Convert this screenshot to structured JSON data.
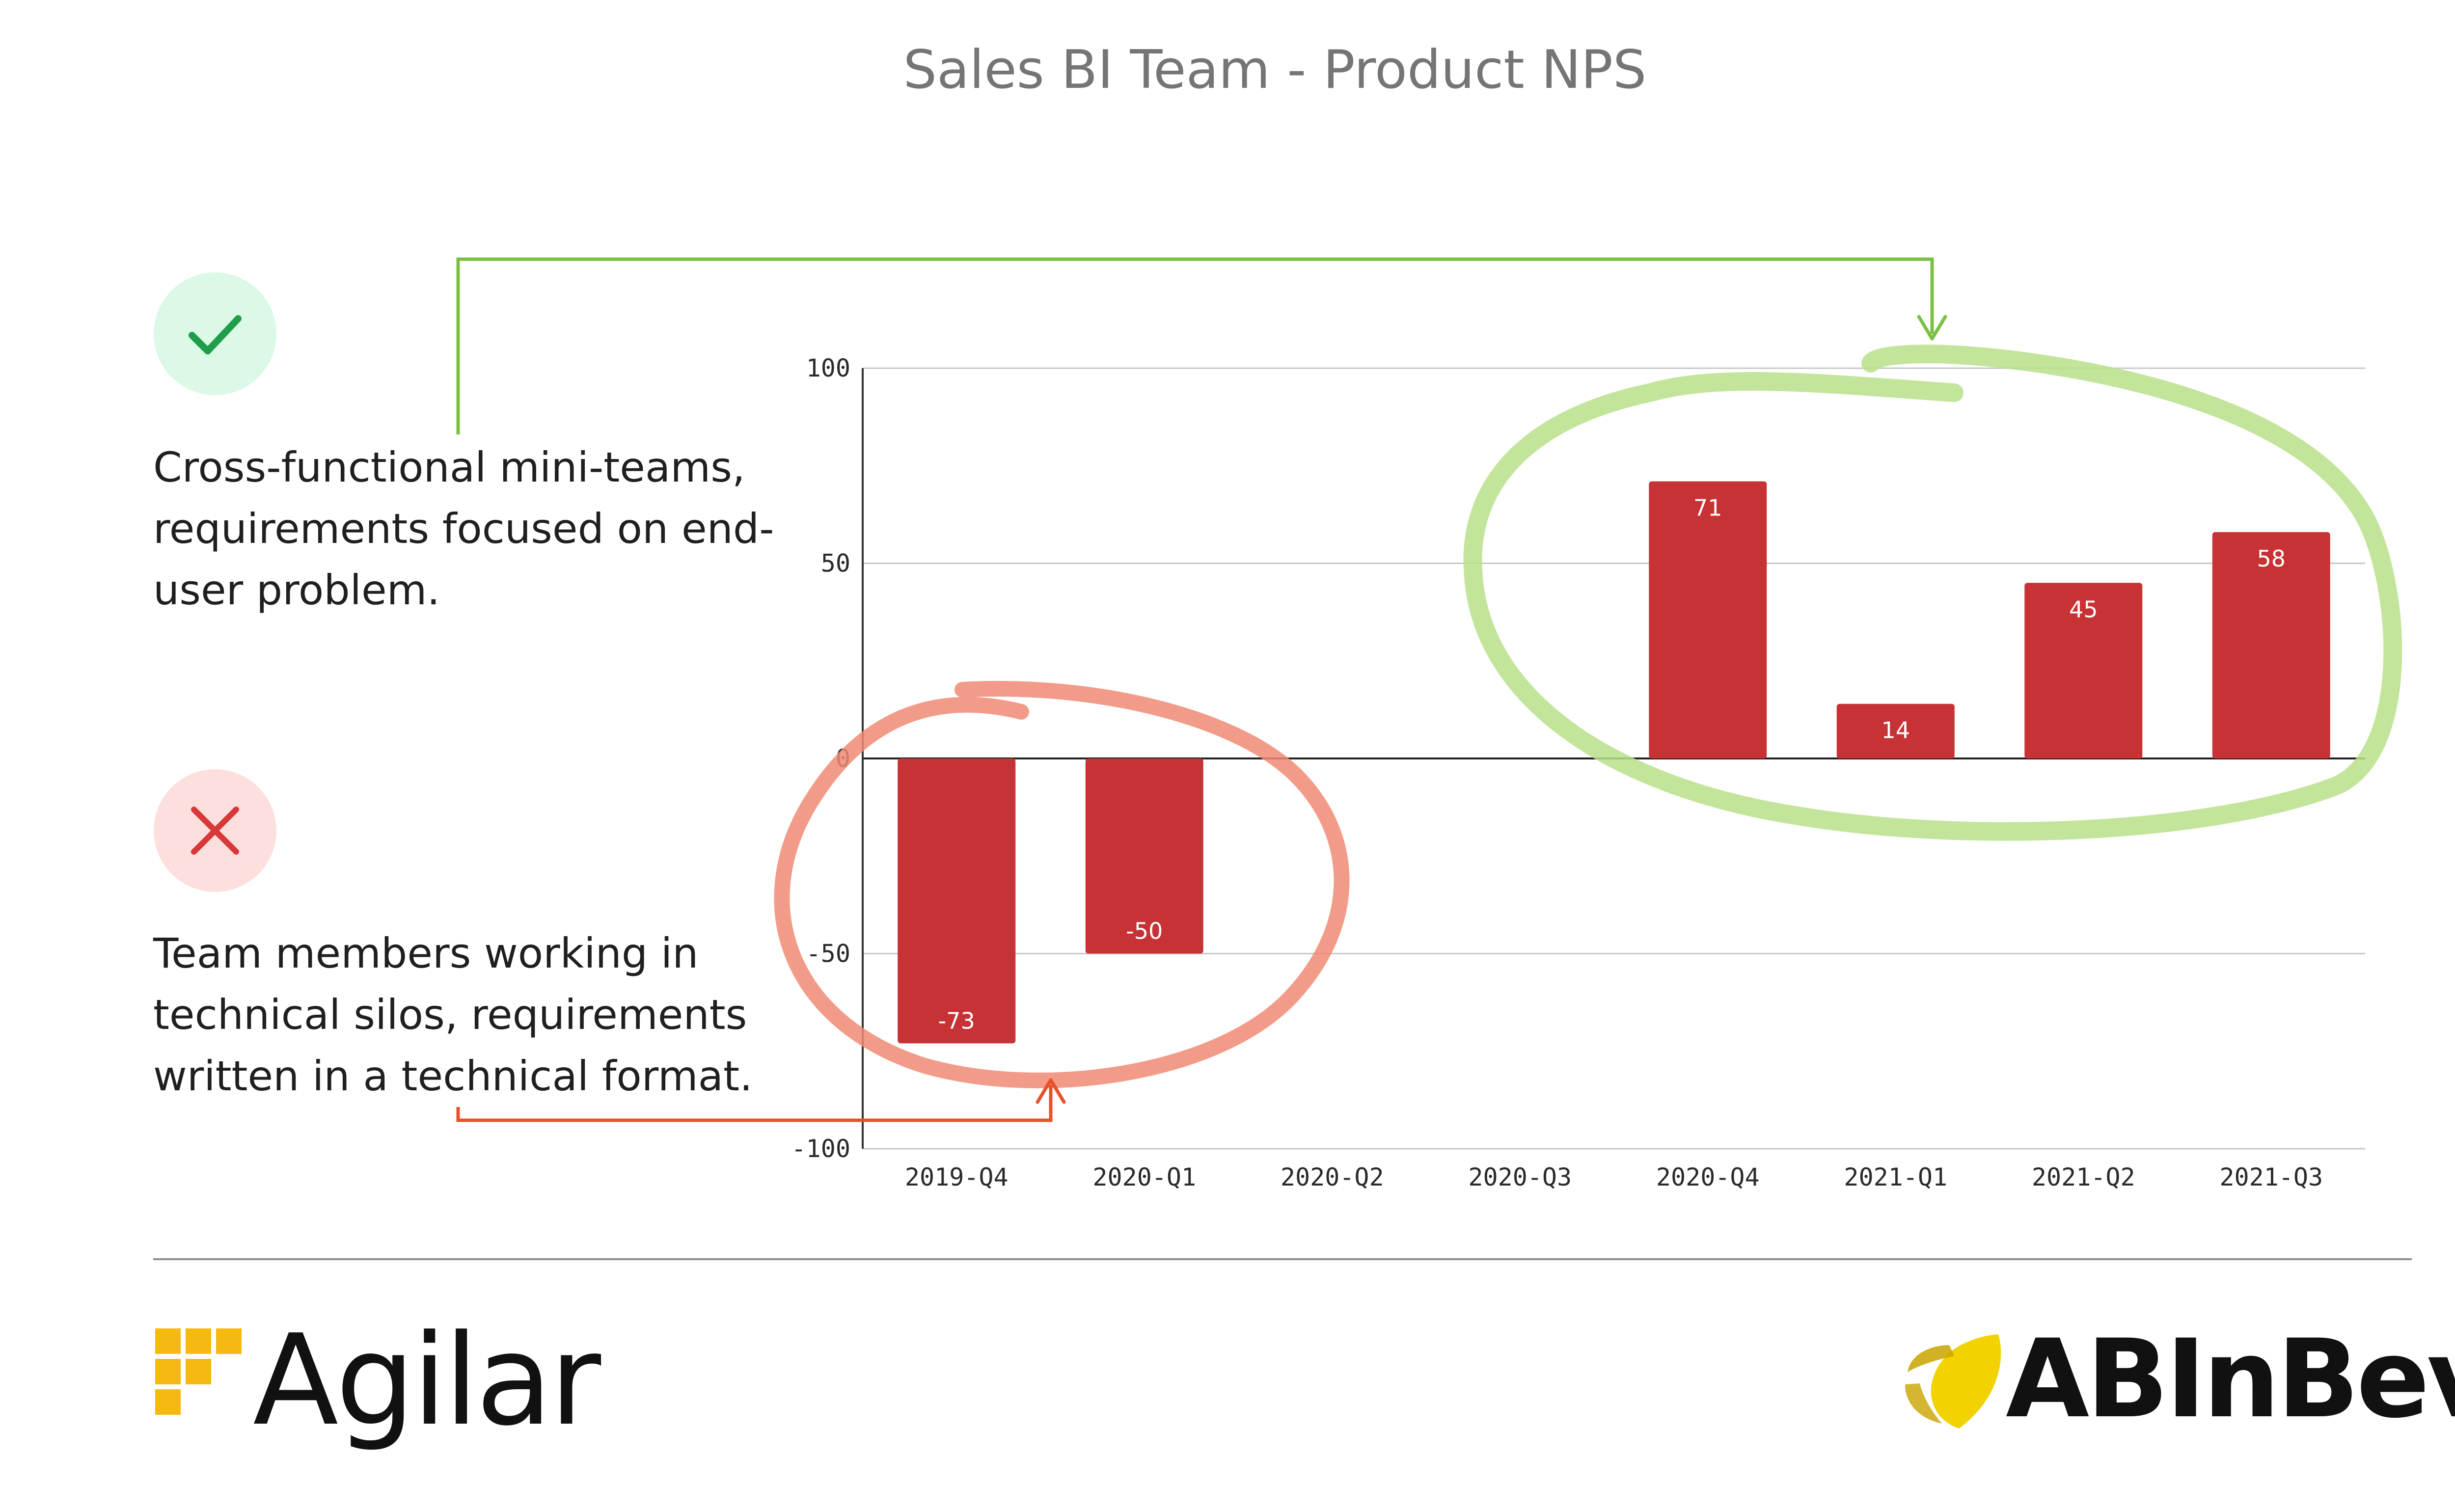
{
  "page": {
    "title": "Sales BI Team - Product NPS"
  },
  "annotations": {
    "positive": {
      "icon": "check-icon",
      "text": "Cross-functional mini-teams,\nrequirements focused on end-\nuser problem.",
      "color": "#7ac143",
      "badge_bg": "#dcf8e6",
      "icon_color": "#1e9e4a"
    },
    "negative": {
      "icon": "x-icon",
      "text": "Team members working in\ntechnical silos, requirements\nwritten in a technical format.",
      "color": "#e8512a",
      "badge_bg": "#fde0de",
      "icon_color": "#d83838"
    }
  },
  "chart_data": {
    "type": "bar",
    "title": "Sales BI Team - Product NPS",
    "xlabel": "",
    "ylabel": "",
    "categories": [
      "2019-Q4",
      "2020-Q1",
      "2020-Q2",
      "2020-Q3",
      "2020-Q4",
      "2021-Q1",
      "2021-Q2",
      "2021-Q3"
    ],
    "values": [
      -73,
      -50,
      null,
      null,
      71,
      14,
      45,
      58
    ],
    "data_labels": [
      "-73",
      "-50",
      "",
      "",
      "71",
      "14",
      "45",
      "58"
    ],
    "ylim": [
      -100,
      100
    ],
    "yticks": [
      -100,
      -50,
      0,
      50,
      100
    ],
    "grid": true,
    "legend": "none",
    "bar_color": "#c73234",
    "highlight_groups": [
      {
        "categories": [
          "2019-Q4",
          "2020-Q1"
        ],
        "color": "#f08a74"
      },
      {
        "categories": [
          "2020-Q4",
          "2021-Q1",
          "2021-Q2",
          "2021-Q3"
        ],
        "color": "#b8e08a"
      }
    ]
  },
  "logos": {
    "left": {
      "text": "Agilar",
      "mark_color": "#f6b912"
    },
    "right": {
      "text": "ABInBev",
      "mark_color": "#f2d200"
    }
  }
}
